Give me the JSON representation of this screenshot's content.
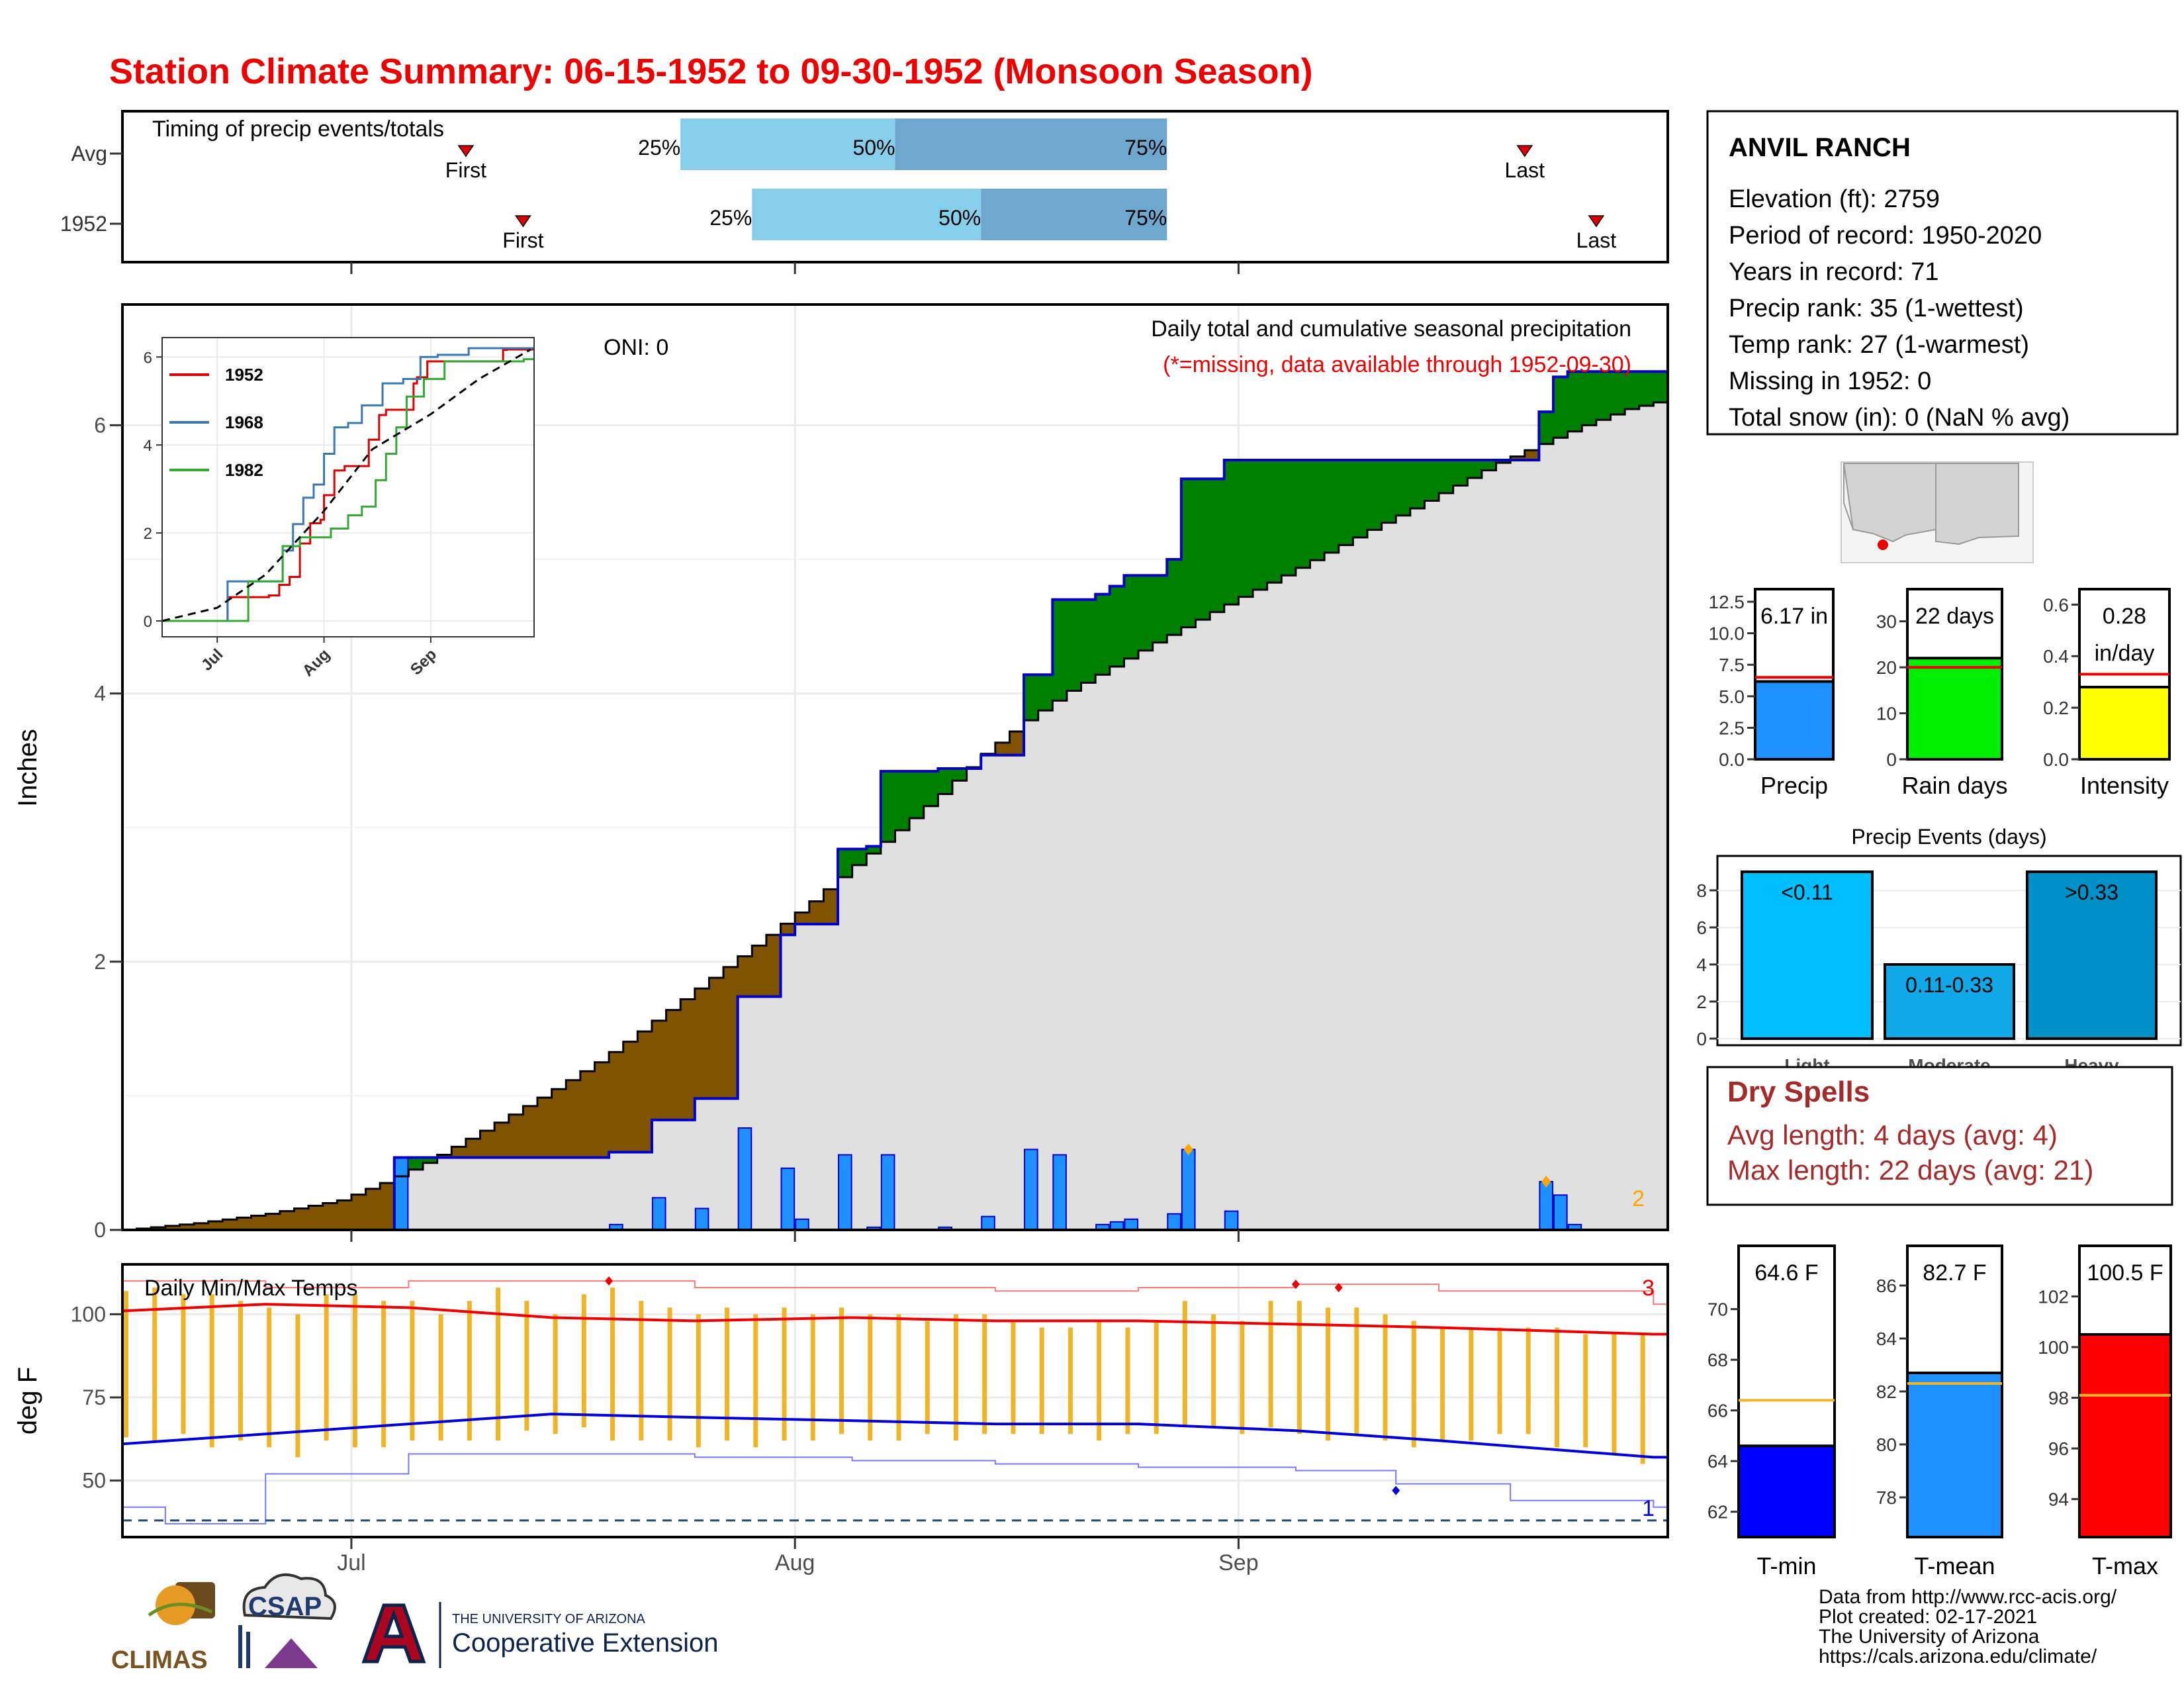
{
  "header": {
    "title": "Station Climate Summary: 06-15-1952 to 09-30-1952 (Monsoon Season)",
    "title_color": "#ee0000"
  },
  "timing": {
    "title": "Timing of precip events/totals",
    "rows": [
      {
        "label": "Avg",
        "first": "07-09",
        "p25": "07-24",
        "p50": "08-08",
        "p75": "08-27",
        "last": "09-21"
      },
      {
        "label": "1952",
        "first": "07-13",
        "p25": "07-29",
        "p50": "08-14",
        "p75": "08-27",
        "last": "09-26"
      }
    ],
    "first_label": "First",
    "last_label": "Last",
    "p25_label": "25%",
    "p50_label": "50%",
    "p75_label": "75%",
    "colors": {
      "light": "#87ceeb",
      "dark": "#6ea8cf",
      "marker": "#dd0000"
    }
  },
  "chart_data": [
    {
      "type": "area",
      "id": "cumulative",
      "ylabel": "Inches",
      "ylim": [
        0,
        6.9
      ],
      "yticks": [
        0,
        2,
        4,
        6
      ],
      "xrange": [
        "06-15",
        "09-30"
      ],
      "xticks": [
        {
          "label": "Jul",
          "date": "07-01"
        },
        {
          "label": "Aug",
          "date": "08-01"
        },
        {
          "label": "Sep",
          "date": "09-01"
        }
      ],
      "title": "Daily total and cumulative seasonal precipitation",
      "note": "(*=missing, data available through 1952-09-30)",
      "oni": "ONI: 0",
      "count_label": "2",
      "avg_cumulative": {
        "dates": [
          "06-15",
          "06-20",
          "06-25",
          "06-30",
          "07-03",
          "07-06",
          "07-09",
          "07-12",
          "07-15",
          "07-18",
          "07-21",
          "07-24",
          "07-27",
          "07-30",
          "08-02",
          "08-05",
          "08-08",
          "08-11",
          "08-14",
          "08-17",
          "08-20",
          "08-23",
          "08-26",
          "08-29",
          "09-01",
          "09-04",
          "09-07",
          "09-10",
          "09-13",
          "09-16",
          "09-19",
          "09-22",
          "09-25",
          "09-28",
          "09-30"
        ],
        "values": [
          0.0,
          0.05,
          0.12,
          0.22,
          0.35,
          0.5,
          0.68,
          0.86,
          1.05,
          1.25,
          1.48,
          1.72,
          1.96,
          2.2,
          2.45,
          2.72,
          2.98,
          3.25,
          3.55,
          3.8,
          4.02,
          4.2,
          4.38,
          4.55,
          4.72,
          4.88,
          5.05,
          5.22,
          5.38,
          5.55,
          5.72,
          5.86,
          6.0,
          6.12,
          6.17
        ]
      },
      "daily_1952": [
        {
          "date": "07-04",
          "value": 0.54
        },
        {
          "date": "07-19",
          "value": 0.04
        },
        {
          "date": "07-22",
          "value": 0.24
        },
        {
          "date": "07-25",
          "value": 0.16
        },
        {
          "date": "07-28",
          "value": 0.76
        },
        {
          "date": "07-31",
          "value": 0.46
        },
        {
          "date": "08-01",
          "value": 0.08
        },
        {
          "date": "08-04",
          "value": 0.56
        },
        {
          "date": "08-06",
          "value": 0.02
        },
        {
          "date": "08-07",
          "value": 0.56
        },
        {
          "date": "08-11",
          "value": 0.02
        },
        {
          "date": "08-14",
          "value": 0.1
        },
        {
          "date": "08-17",
          "value": 0.6
        },
        {
          "date": "08-19",
          "value": 0.56
        },
        {
          "date": "08-22",
          "value": 0.04
        },
        {
          "date": "08-23",
          "value": 0.06
        },
        {
          "date": "08-24",
          "value": 0.08
        },
        {
          "date": "08-27",
          "value": 0.12
        },
        {
          "date": "08-28",
          "value": 0.6
        },
        {
          "date": "08-31",
          "value": 0.14
        },
        {
          "date": "09-22",
          "value": 0.36
        },
        {
          "date": "09-23",
          "value": 0.26
        },
        {
          "date": "09-24",
          "value": 0.04
        }
      ],
      "colors": {
        "above": "#008000",
        "below": "#7f5300",
        "bars": "#1e90ff",
        "bar_edge": "#0000cc",
        "line": "#0000cc",
        "fill": "#e0e0e0"
      }
    },
    {
      "type": "line",
      "id": "inset",
      "ylim": [
        0,
        6.2
      ],
      "yticks": [
        0,
        2,
        4,
        6
      ],
      "xticks": [
        {
          "label": "Jul",
          "date": "07-01"
        },
        {
          "label": "Aug",
          "date": "08-01"
        },
        {
          "label": "Sep",
          "date": "09-01"
        }
      ],
      "series": [
        {
          "name": "1952",
          "color": "#dd0000",
          "x": [
            "06-15",
            "07-04",
            "07-16",
            "07-19",
            "07-22",
            "07-25",
            "07-28",
            "07-31",
            "08-01",
            "08-04",
            "08-07",
            "08-14",
            "08-17",
            "08-19",
            "08-27",
            "08-28",
            "08-31",
            "09-22",
            "09-23",
            "09-30"
          ],
          "y": [
            0,
            0.54,
            0.58,
            0.82,
            1.0,
            1.76,
            2.22,
            2.3,
            2.86,
            3.42,
            3.52,
            4.12,
            4.68,
            4.8,
            5.4,
            5.54,
            5.9,
            6.16,
            6.17,
            6.17
          ]
        },
        {
          "name": "1968",
          "color": "#3a78b5",
          "x": [
            "06-15",
            "07-04",
            "07-20",
            "07-23",
            "07-26",
            "07-29",
            "08-01",
            "08-04",
            "08-08",
            "08-12",
            "08-18",
            "08-24",
            "08-29",
            "09-03",
            "09-12",
            "09-28"
          ],
          "y": [
            0,
            0.9,
            1.6,
            2.2,
            2.8,
            3.1,
            3.8,
            4.4,
            4.5,
            4.9,
            5.4,
            5.5,
            6.0,
            6.05,
            6.2,
            6.2
          ]
        },
        {
          "name": "1982",
          "color": "#33aa33",
          "x": [
            "06-15",
            "07-10",
            "07-20",
            "07-25",
            "08-03",
            "08-08",
            "08-12",
            "08-16",
            "08-19",
            "08-22",
            "08-25",
            "08-30",
            "09-05",
            "09-28"
          ],
          "y": [
            0,
            0.9,
            1.7,
            1.9,
            2.1,
            2.4,
            2.6,
            3.2,
            3.8,
            4.4,
            5.1,
            5.5,
            5.9,
            5.95
          ]
        }
      ],
      "avg": {
        "color": "#000000",
        "x": [
          "06-15",
          "07-01",
          "07-15",
          "08-01",
          "08-15",
          "09-01",
          "09-15",
          "09-30"
        ],
        "y": [
          0,
          0.3,
          1.05,
          2.5,
          3.9,
          4.7,
          5.5,
          6.17
        ]
      }
    },
    {
      "type": "line",
      "id": "temps",
      "title": "Daily Min/Max Temps",
      "ylabel": "deg F",
      "ylim": [
        33,
        115
      ],
      "yticks": [
        50,
        75,
        100
      ],
      "max_count": "3",
      "min_count": "1",
      "avg_max_line": {
        "x": [
          "06-15",
          "06-25",
          "07-05",
          "07-15",
          "07-25",
          "08-05",
          "08-15",
          "08-25",
          "09-05",
          "09-15",
          "09-30"
        ],
        "y": [
          101,
          103,
          102,
          99,
          98,
          99,
          98,
          98,
          97,
          96,
          94
        ]
      },
      "avg_min_line": {
        "x": [
          "06-15",
          "06-25",
          "07-05",
          "07-15",
          "07-25",
          "08-05",
          "08-15",
          "08-25",
          "09-05",
          "09-15",
          "09-30"
        ],
        "y": [
          61,
          64,
          67,
          70,
          69,
          68,
          67,
          67,
          65,
          62,
          57
        ]
      },
      "record_max": {
        "x": [
          "06-15",
          "06-25",
          "07-05",
          "07-15",
          "07-25",
          "08-05",
          "08-15",
          "08-25",
          "09-05",
          "09-15",
          "09-30"
        ],
        "y": [
          110,
          108,
          110,
          110,
          108,
          108,
          107,
          108,
          109,
          107,
          103
        ]
      },
      "record_min": {
        "x": [
          "06-15",
          "06-18",
          "06-25",
          "07-05",
          "07-15",
          "07-25",
          "08-05",
          "08-15",
          "08-25",
          "09-05",
          "09-12",
          "09-20",
          "09-30"
        ],
        "y": [
          42,
          37,
          52,
          58,
          58,
          57,
          56,
          55,
          54,
          53,
          49,
          44,
          42
        ]
      },
      "zero_line": 38,
      "ranges_1952": [
        {
          "date": "06-15",
          "hi": 107,
          "lo": 63
        },
        {
          "date": "06-17",
          "hi": 108,
          "lo": 62
        },
        {
          "date": "06-19",
          "hi": 106,
          "lo": 64
        },
        {
          "date": "06-21",
          "hi": 106,
          "lo": 60
        },
        {
          "date": "06-23",
          "hi": 104,
          "lo": 62
        },
        {
          "date": "06-25",
          "hi": 102,
          "lo": 60
        },
        {
          "date": "06-27",
          "hi": 100,
          "lo": 57
        },
        {
          "date": "06-29",
          "hi": 106,
          "lo": 62
        },
        {
          "date": "07-01",
          "hi": 106,
          "lo": 60
        },
        {
          "date": "07-03",
          "hi": 104,
          "lo": 60
        },
        {
          "date": "07-05",
          "hi": 104,
          "lo": 62
        },
        {
          "date": "07-07",
          "hi": 100,
          "lo": 62
        },
        {
          "date": "07-09",
          "hi": 104,
          "lo": 62
        },
        {
          "date": "07-11",
          "hi": 108,
          "lo": 62
        },
        {
          "date": "07-13",
          "hi": 104,
          "lo": 65
        },
        {
          "date": "07-15",
          "hi": 100,
          "lo": 64
        },
        {
          "date": "07-17",
          "hi": 106,
          "lo": 66
        },
        {
          "date": "07-19",
          "hi": 108,
          "lo": 62
        },
        {
          "date": "07-21",
          "hi": 104,
          "lo": 62
        },
        {
          "date": "07-23",
          "hi": 102,
          "lo": 62
        },
        {
          "date": "07-25",
          "hi": 100,
          "lo": 60
        },
        {
          "date": "07-27",
          "hi": 102,
          "lo": 62
        },
        {
          "date": "07-29",
          "hi": 100,
          "lo": 60
        },
        {
          "date": "07-31",
          "hi": 102,
          "lo": 62
        },
        {
          "date": "08-02",
          "hi": 100,
          "lo": 62
        },
        {
          "date": "08-04",
          "hi": 102,
          "lo": 64
        },
        {
          "date": "08-06",
          "hi": 100,
          "lo": 62
        },
        {
          "date": "08-08",
          "hi": 100,
          "lo": 62
        },
        {
          "date": "08-10",
          "hi": 98,
          "lo": 64
        },
        {
          "date": "08-12",
          "hi": 100,
          "lo": 62
        },
        {
          "date": "08-14",
          "hi": 100,
          "lo": 64
        },
        {
          "date": "08-16",
          "hi": 98,
          "lo": 64
        },
        {
          "date": "08-18",
          "hi": 96,
          "lo": 64
        },
        {
          "date": "08-20",
          "hi": 96,
          "lo": 64
        },
        {
          "date": "08-22",
          "hi": 98,
          "lo": 62
        },
        {
          "date": "08-24",
          "hi": 96,
          "lo": 64
        },
        {
          "date": "08-26",
          "hi": 98,
          "lo": 64
        },
        {
          "date": "08-28",
          "hi": 104,
          "lo": 66
        },
        {
          "date": "08-30",
          "hi": 100,
          "lo": 66
        },
        {
          "date": "09-01",
          "hi": 98,
          "lo": 64
        },
        {
          "date": "09-03",
          "hi": 104,
          "lo": 66
        },
        {
          "date": "09-05",
          "hi": 104,
          "lo": 64
        },
        {
          "date": "09-07",
          "hi": 102,
          "lo": 62
        },
        {
          "date": "09-09",
          "hi": 102,
          "lo": 64
        },
        {
          "date": "09-11",
          "hi": 100,
          "lo": 62
        },
        {
          "date": "09-13",
          "hi": 98,
          "lo": 60
        },
        {
          "date": "09-15",
          "hi": 96,
          "lo": 62
        },
        {
          "date": "09-17",
          "hi": 96,
          "lo": 62
        },
        {
          "date": "09-19",
          "hi": 96,
          "lo": 64
        },
        {
          "date": "09-21",
          "hi": 96,
          "lo": 64
        },
        {
          "date": "09-23",
          "hi": 96,
          "lo": 60
        },
        {
          "date": "09-25",
          "hi": 94,
          "lo": 60
        },
        {
          "date": "09-27",
          "hi": 94,
          "lo": 58
        },
        {
          "date": "09-29",
          "hi": 94,
          "lo": 55
        }
      ],
      "colors": {
        "bar": "#f0b428",
        "avg_max": "#ee0000",
        "avg_min": "#0000dd",
        "rec_max": "#ff7777",
        "rec_min": "#7777ff",
        "zero": "#1f4e79"
      }
    },
    {
      "type": "bar",
      "id": "precip_total",
      "categories": [
        "Precip"
      ],
      "values": [
        6.17
      ],
      "avg": 6.5,
      "ylim": [
        0,
        13.5
      ],
      "yticks": [
        "0.0",
        "2.5",
        "5.0",
        "7.5",
        "10.0",
        "12.5"
      ],
      "label": "6.17 in",
      "color": "#1e90ff"
    },
    {
      "type": "bar",
      "id": "rain_days",
      "categories": [
        "Rain days"
      ],
      "values": [
        22
      ],
      "avg": 20,
      "ylim": [
        0,
        37
      ],
      "yticks": [
        "0",
        "10",
        "20",
        "30"
      ],
      "label": "22 days",
      "color": "#00ee00"
    },
    {
      "type": "bar",
      "id": "intensity",
      "categories": [
        "Intensity"
      ],
      "values": [
        0.28
      ],
      "avg": 0.33,
      "ylim": [
        0,
        0.66
      ],
      "yticks": [
        "0.0",
        "0.2",
        "0.4",
        "0.6"
      ],
      "label": "0.28",
      "label2": "in/day",
      "color": "#ffff00"
    },
    {
      "type": "bar",
      "id": "precip_events",
      "title": "Precip Events (days)",
      "categories": [
        "Light",
        "Moderate",
        "Heavy"
      ],
      "values": [
        9,
        4,
        9
      ],
      "labels": [
        "<0.11",
        "0.11-0.33",
        ">0.33"
      ],
      "ylim": [
        0,
        9.5
      ],
      "yticks": [
        "0",
        "2",
        "4",
        "6",
        "8"
      ],
      "colors": [
        "#00bfff",
        "#10a8e6",
        "#0090c8"
      ]
    },
    {
      "type": "bar",
      "id": "tmin",
      "categories": [
        "T-min"
      ],
      "values": [
        64.6
      ],
      "avg": 66.4,
      "ylim": [
        61,
        72.5
      ],
      "yticks": [
        "62",
        "64",
        "66",
        "68",
        "70"
      ],
      "label": "64.6 F",
      "color": "#0000ff"
    },
    {
      "type": "bar",
      "id": "tmean",
      "categories": [
        "T-mean"
      ],
      "values": [
        82.7
      ],
      "avg": 82.3,
      "ylim": [
        76.5,
        87.5
      ],
      "yticks": [
        "78",
        "80",
        "82",
        "84",
        "86"
      ],
      "label": "82.7 F",
      "color": "#1e90ff"
    },
    {
      "type": "bar",
      "id": "tmax",
      "categories": [
        "T-max"
      ],
      "values": [
        100.5
      ],
      "avg": 98.1,
      "ylim": [
        92.5,
        104
      ],
      "yticks": [
        "94",
        "96",
        "98",
        "100",
        "102"
      ],
      "label": "100.5 F",
      "color": "#ff0000"
    }
  ],
  "station": {
    "name": "ANVIL RANCH",
    "lines": [
      "Elevation (ft): 2759",
      "Period of record: 1950-2020",
      "Years in record: 71",
      "Precip rank: 35 (1-wettest)",
      "Temp rank: 27 (1-warmest)",
      "Missing in 1952: 0",
      "Total snow (in): 0 (NaN % avg)"
    ]
  },
  "dry_spells": {
    "title": "Dry Spells",
    "avg_length": "Avg length: 4 days (avg: 4)",
    "max_length": "Max length: 22 days (avg: 21)",
    "color": "#a52a2a"
  },
  "footer": {
    "lines": [
      "Data from http://www.rcc-acis.org/",
      "Plot created: 02-17-2021",
      "The University of Arizona",
      "https://cals.arizona.edu/climate/"
    ],
    "logos": {
      "climas": "CLIMAS",
      "csap": "CSAP",
      "ua_small": "THE UNIVERSITY OF ARIZONA",
      "ua_big": "Cooperative Extension"
    }
  }
}
